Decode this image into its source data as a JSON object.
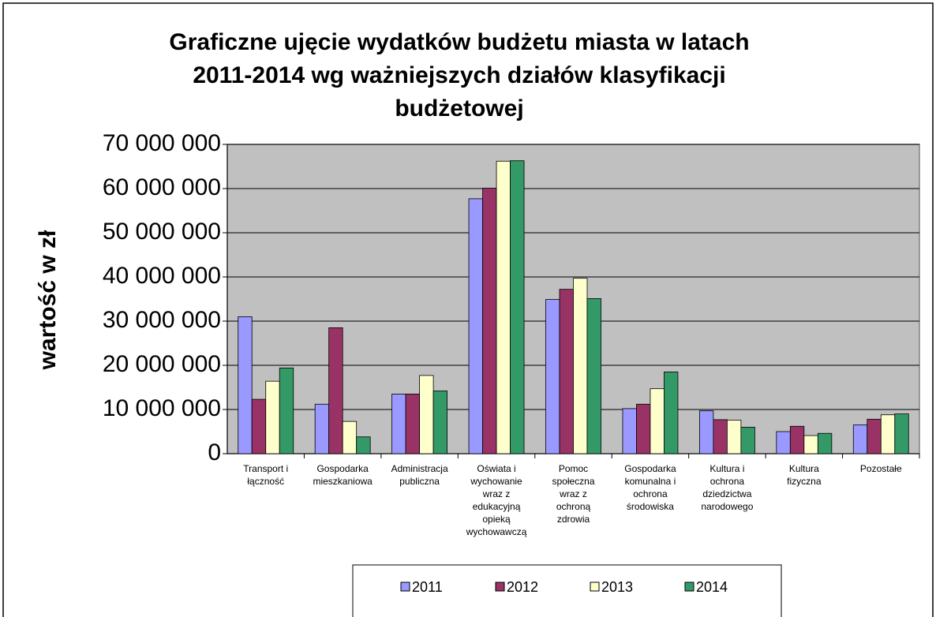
{
  "chart_data": {
    "type": "bar",
    "title": "Graficzne ujęcie wydatków budżetu miasta  w latach\n2011-2014 wg ważniejszych działów klasyfikacji\nbudżetowej",
    "y_label": "wartość w zł",
    "categories": [
      "Transport i\nłączność",
      "Gospodarka\nmieszkaniowa",
      "Administracja\npubliczna",
      "Oświata i\nwychowanie\nwraz z\nedukacyjną\nopieką\nwychowawczą",
      "Pomoc\nspołeczna\nwraz z\nochroną\nzdrowia",
      "Gospodarka\nkomunalna i\nochrona\nśrodowiska",
      "Kultura i\nochrona\ndziedzictwa\nnarodowego",
      "Kultura\nfizyczna",
      "Pozostałe"
    ],
    "series": [
      {
        "name": "2011",
        "color": "#9999ff",
        "values": [
          31000000,
          11200000,
          13500000,
          57700000,
          34900000,
          10200000,
          9700000,
          5000000,
          6500000
        ]
      },
      {
        "name": "2012",
        "color": "#993366",
        "values": [
          12300000,
          28500000,
          13500000,
          60100000,
          37200000,
          11200000,
          7700000,
          6200000,
          7800000
        ]
      },
      {
        "name": "2013",
        "color": "#ffffcc",
        "values": [
          16400000,
          7300000,
          17700000,
          66200000,
          39700000,
          14700000,
          7600000,
          4100000,
          8800000
        ]
      },
      {
        "name": "2014",
        "color": "#339966",
        "values": [
          19400000,
          3800000,
          14200000,
          66300000,
          35100000,
          18500000,
          6000000,
          4600000,
          9000000
        ]
      }
    ],
    "ylim": [
      0,
      70000000
    ],
    "yticks": [
      0,
      {
        "value": 10000000,
        "label": "10 000 000"
      },
      {
        "value": 20000000,
        "label": "20 000 000"
      },
      {
        "value": 30000000,
        "label": "30 000 000"
      },
      {
        "value": 40000000,
        "label": "40 000 000"
      },
      {
        "value": 50000000,
        "label": "50 000 000"
      },
      {
        "value": 60000000,
        "label": "60 000 000"
      },
      {
        "value": 70000000,
        "label": "70 000 000"
      }
    ],
    "grid": true,
    "plot_background": "#c0c0c0",
    "legend": "bottom"
  }
}
